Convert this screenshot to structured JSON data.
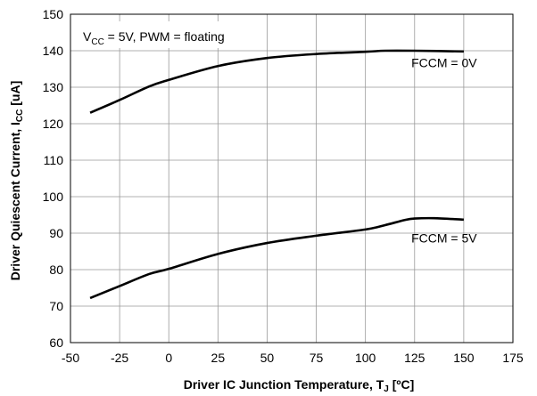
{
  "chart_data": {
    "type": "line",
    "annotation": {
      "prefix": "V",
      "sub": "CC",
      "suffix": " = 5V, PWM = floating"
    },
    "xlabel": {
      "main": "Driver IC Junction Temperature, T",
      "sub": "J",
      "tail": " [ºC]"
    },
    "ylabel": {
      "main": "Driver Quiescent Current, I",
      "sub": "CC",
      "tail": " [uA]"
    },
    "xlim": [
      -50,
      175
    ],
    "ylim": [
      60,
      150
    ],
    "xticks": [
      -50,
      -25,
      0,
      25,
      50,
      75,
      100,
      125,
      150,
      175
    ],
    "yticks": [
      60,
      70,
      80,
      90,
      100,
      110,
      120,
      130,
      140,
      150
    ],
    "grid": true,
    "series": [
      {
        "name": "FCCM = 0V",
        "x": [
          -40,
          -25,
          -10,
          0,
          25,
          50,
          75,
          100,
          110,
          125,
          150
        ],
        "y": [
          123,
          126.5,
          130.2,
          132,
          135.8,
          138,
          139.1,
          139.7,
          140,
          140,
          139.8
        ]
      },
      {
        "name": "FCCM = 5V",
        "x": [
          -40,
          -25,
          -10,
          0,
          25,
          50,
          75,
          100,
          110,
          120,
          125,
          135,
          150
        ],
        "y": [
          72.2,
          75.5,
          78.8,
          80.2,
          84.3,
          87.3,
          89.3,
          91,
          92.2,
          93.6,
          94,
          94.1,
          93.7
        ]
      }
    ],
    "series_labels": [
      {
        "text": "FCCM = 0V",
        "x": 140,
        "y": 135.5
      },
      {
        "text": "FCCM = 5V",
        "x": 140,
        "y": 87.5
      }
    ]
  }
}
